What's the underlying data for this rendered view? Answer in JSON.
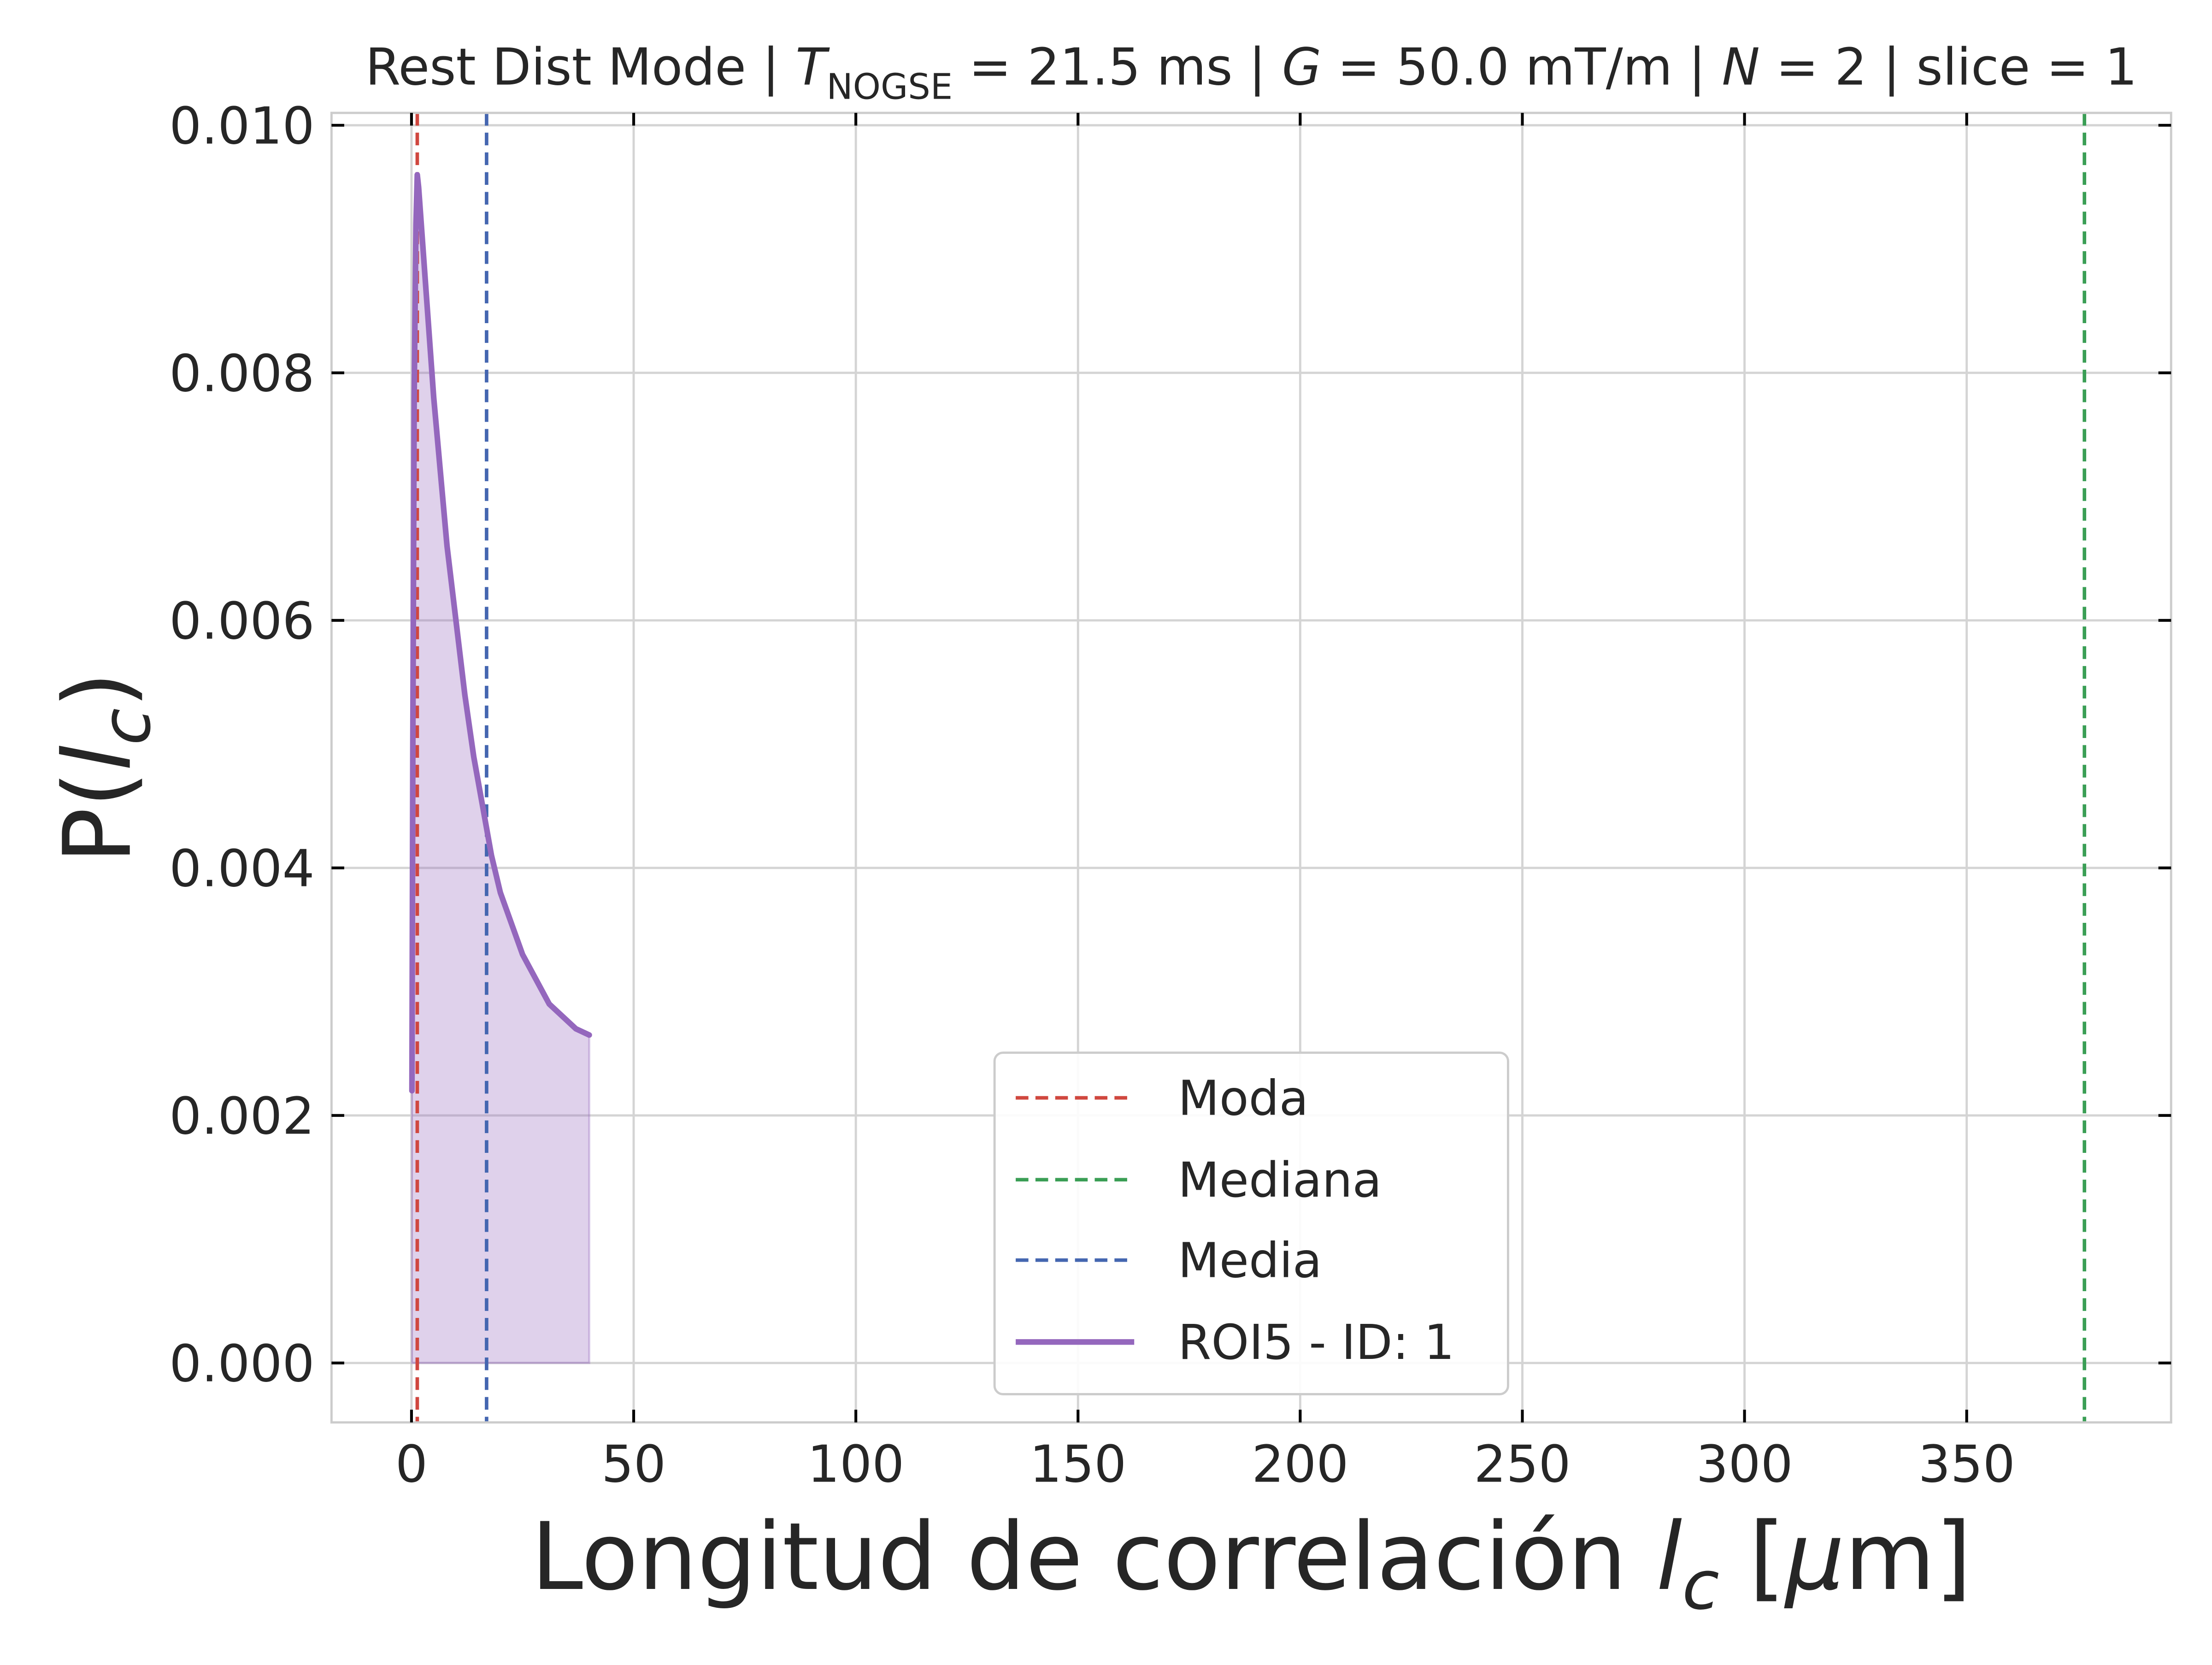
{
  "chart_data": {
    "type": "line",
    "title": {
      "prefix": "Rest Dist Mode | ",
      "t_symbol": "T",
      "t_subscript": "NOGSE",
      "t_value": " = 21.5 ms | ",
      "g_symbol": "G",
      "g_value": " = 50.0 mT/m | ",
      "n_symbol": "N",
      "n_value": " = 2 | slice = 1"
    },
    "xlabel": {
      "text": "Longitud de correlación ",
      "var": "l",
      "sub": "c",
      "unit_open": " [",
      "mu": "μ",
      "unit_close": "m]"
    },
    "ylabel": {
      "text": "P(",
      "var": "l",
      "sub": "c",
      "close": ")"
    },
    "xlim": [
      -18,
      396
    ],
    "ylim": [
      -0.00048,
      0.0101
    ],
    "xticks": [
      0,
      50,
      100,
      150,
      200,
      250,
      300,
      350
    ],
    "xtick_labels": [
      "0",
      "50",
      "100",
      "150",
      "200",
      "250",
      "300",
      "350"
    ],
    "yticks": [
      0,
      0.002,
      0.004,
      0.006,
      0.008,
      0.01
    ],
    "ytick_labels": [
      "0.000",
      "0.002",
      "0.004",
      "0.006",
      "0.008",
      "0.010"
    ],
    "grid": true,
    "legend_position": "lower-center",
    "series": [
      {
        "name": "ROI5 - ID: 1",
        "color": "#9467bd",
        "style": "solid",
        "fill": true,
        "x": [
          0.1,
          0.3,
          0.6,
          1.0,
          1.3,
          1.6,
          2.0,
          3.0,
          4.0,
          5.0,
          6.0,
          7.0,
          8.0,
          10.0,
          12.0,
          14.0,
          16.0,
          18.0,
          20.0,
          22.0,
          25.0,
          28.0,
          31.0,
          34.0,
          37.0,
          40.0
        ],
        "y": [
          0.0022,
          0.005,
          0.0078,
          0.0092,
          0.0096,
          0.0095,
          0.0093,
          0.0088,
          0.0083,
          0.0078,
          0.0074,
          0.007,
          0.0066,
          0.006,
          0.0054,
          0.0049,
          0.0045,
          0.0041,
          0.0038,
          0.0036,
          0.0033,
          0.0031,
          0.0029,
          0.0028,
          0.0027,
          0.00265
        ]
      }
    ],
    "vlines": [
      {
        "name": "Moda",
        "x": 1.3,
        "color": "#d0473f"
      },
      {
        "name": "Mediana",
        "x": 376.5,
        "color": "#3a9e55"
      },
      {
        "name": "Media",
        "x": 16.9,
        "color": "#4466b0"
      }
    ],
    "legend": [
      "Moda",
      "Mediana",
      "Media",
      "ROI5 - ID: 1"
    ]
  }
}
